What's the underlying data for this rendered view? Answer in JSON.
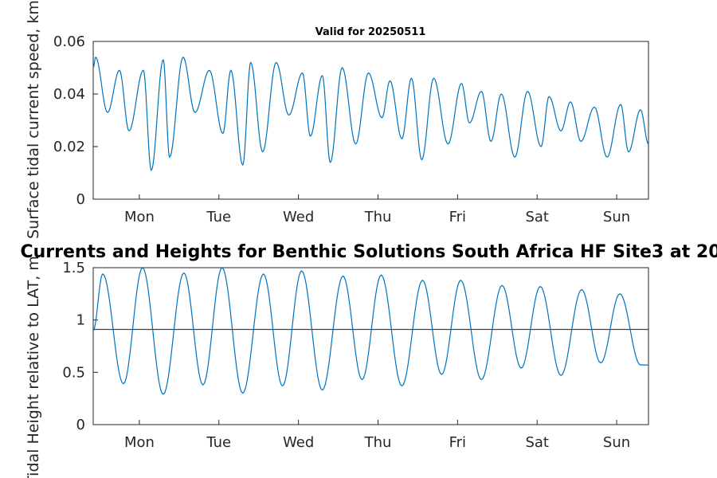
{
  "colors": {
    "series": "#0072bd",
    "reference_line": "#404040",
    "axes": "#262626"
  },
  "chart_data": [
    {
      "type": "line",
      "title": "Valid for 20250511",
      "xlabel": "",
      "ylabel": "Surface tidal current speed, km",
      "x_ticks": [
        "Mon",
        "Tue",
        "Wed",
        "Thu",
        "Fri",
        "Sat",
        "Sun"
      ],
      "y_ticks": [
        "0",
        "0.02",
        "0.04",
        "0.06"
      ],
      "xlim": [
        0.42,
        7.4
      ],
      "ylim": [
        0,
        0.06
      ],
      "grid": false,
      "series": [
        {
          "x": [
            0.42,
            0.45,
            0.6,
            0.75,
            0.87,
            1.05,
            1.15,
            1.3,
            1.38,
            1.55,
            1.7,
            1.88,
            2.05,
            2.15,
            2.3,
            2.4,
            2.55,
            2.72,
            2.88,
            3.05,
            3.15,
            3.3,
            3.4,
            3.55,
            3.72,
            3.88,
            4.05,
            4.15,
            4.3,
            4.42,
            4.55,
            4.7,
            4.88,
            5.05,
            5.15,
            5.3,
            5.42,
            5.55,
            5.72,
            5.88,
            6.05,
            6.15,
            6.3,
            6.42,
            6.55,
            6.72,
            6.88,
            7.05,
            7.15,
            7.3,
            7.4
          ],
          "values": [
            0.05,
            0.054,
            0.033,
            0.049,
            0.026,
            0.049,
            0.011,
            0.053,
            0.016,
            0.054,
            0.033,
            0.049,
            0.025,
            0.049,
            0.013,
            0.052,
            0.018,
            0.052,
            0.032,
            0.048,
            0.024,
            0.047,
            0.014,
            0.05,
            0.021,
            0.048,
            0.031,
            0.045,
            0.023,
            0.046,
            0.015,
            0.046,
            0.021,
            0.044,
            0.029,
            0.041,
            0.022,
            0.04,
            0.016,
            0.041,
            0.02,
            0.039,
            0.026,
            0.037,
            0.022,
            0.035,
            0.016,
            0.036,
            0.018,
            0.034,
            0.021
          ]
        }
      ]
    },
    {
      "type": "line",
      "title": "Currents and Heights for Benthic Solutions South Africa HF Site3 at 20",
      "xlabel": "",
      "ylabel": "Tidal Height relative to LAT, m",
      "x_ticks": [
        "Mon",
        "Tue",
        "Wed",
        "Thu",
        "Fri",
        "Sat",
        "Sun"
      ],
      "y_ticks": [
        "0",
        "0.5",
        "1",
        "1.5"
      ],
      "xlim": [
        0.42,
        7.4
      ],
      "ylim": [
        0,
        1.5
      ],
      "grid": false,
      "reference_line": 0.91,
      "series": [
        {
          "x": [
            0.42,
            0.54,
            0.8,
            1.04,
            1.3,
            1.56,
            1.8,
            2.04,
            2.3,
            2.56,
            2.8,
            3.04,
            3.3,
            3.56,
            3.8,
            4.04,
            4.3,
            4.56,
            4.8,
            5.04,
            5.3,
            5.56,
            5.8,
            6.04,
            6.3,
            6.56,
            6.8,
            7.04,
            7.3,
            7.4
          ],
          "values": [
            0.9,
            1.44,
            0.39,
            1.5,
            0.29,
            1.45,
            0.38,
            1.5,
            0.3,
            1.44,
            0.37,
            1.47,
            0.33,
            1.42,
            0.43,
            1.43,
            0.37,
            1.38,
            0.48,
            1.38,
            0.43,
            1.33,
            0.54,
            1.32,
            0.47,
            1.29,
            0.59,
            1.25,
            0.57,
            0.57
          ]
        }
      ]
    }
  ]
}
